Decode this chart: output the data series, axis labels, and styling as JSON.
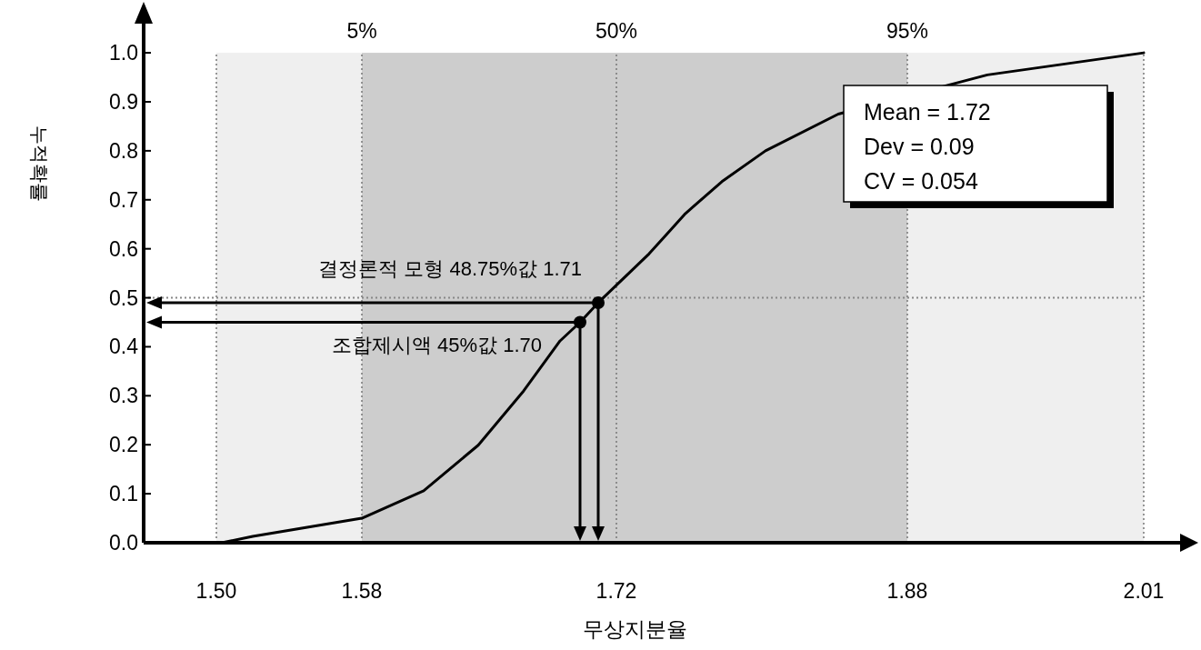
{
  "chart_data": {
    "type": "line",
    "xlabel": "무상지분율",
    "ylabel": "누적확률",
    "xlim": [
      1.46,
      2.03
    ],
    "ylim": [
      0,
      1.08
    ],
    "xticks": [
      {
        "value": 1.5,
        "label": "1.50"
      },
      1.58,
      1.72,
      1.88,
      2.01
    ],
    "yticks": [
      {
        "value": 0,
        "label": "0.0"
      },
      0.1,
      0.2,
      0.3,
      0.4,
      0.5,
      0.6,
      0.7,
      0.8,
      0.9,
      {
        "value": 1,
        "label": "1.0"
      }
    ],
    "grid": "x",
    "bands": [
      {
        "axis": "x",
        "from": 1.5,
        "to": 2.01,
        "color": "#efefef"
      },
      {
        "axis": "x",
        "from": 1.58,
        "to": 1.88,
        "color": "#cdcdcd"
      }
    ],
    "ref_lines": [
      {
        "axis": "y",
        "value": 0.5,
        "color": "#888888",
        "line_style": "dotted"
      }
    ],
    "series": [
      {
        "color": "#000000",
        "x": [
          1.503,
          1.52,
          1.58,
          1.614,
          1.644,
          1.669,
          1.689,
          1.7,
          1.71,
          1.738,
          1.758,
          1.778,
          1.802,
          1.842,
          1.924,
          2.01
        ],
        "values": [
          0,
          0.013,
          0.05,
          0.106,
          0.199,
          0.31,
          0.412,
          0.45,
          0.49,
          0.59,
          0.672,
          0.737,
          0.8,
          0.875,
          0.955,
          1.0
        ]
      }
    ],
    "annotations": [
      {
        "text": "5%",
        "x": 1.58,
        "y": 1.0
      },
      {
        "text": "50%",
        "x": 1.72,
        "y": 1.0
      },
      {
        "text": "95%",
        "x": 1.88,
        "y": 1.0
      },
      {
        "text": "결정론적 모형 48.75%값 1.71",
        "x": 1.71,
        "y": 0.49
      },
      {
        "text": "조합제시액 45%값 1.70",
        "x": 1.7,
        "y": 0.45
      },
      "Mean = 1.72",
      "Dev = 0.09",
      "CV = 0.054"
    ]
  }
}
